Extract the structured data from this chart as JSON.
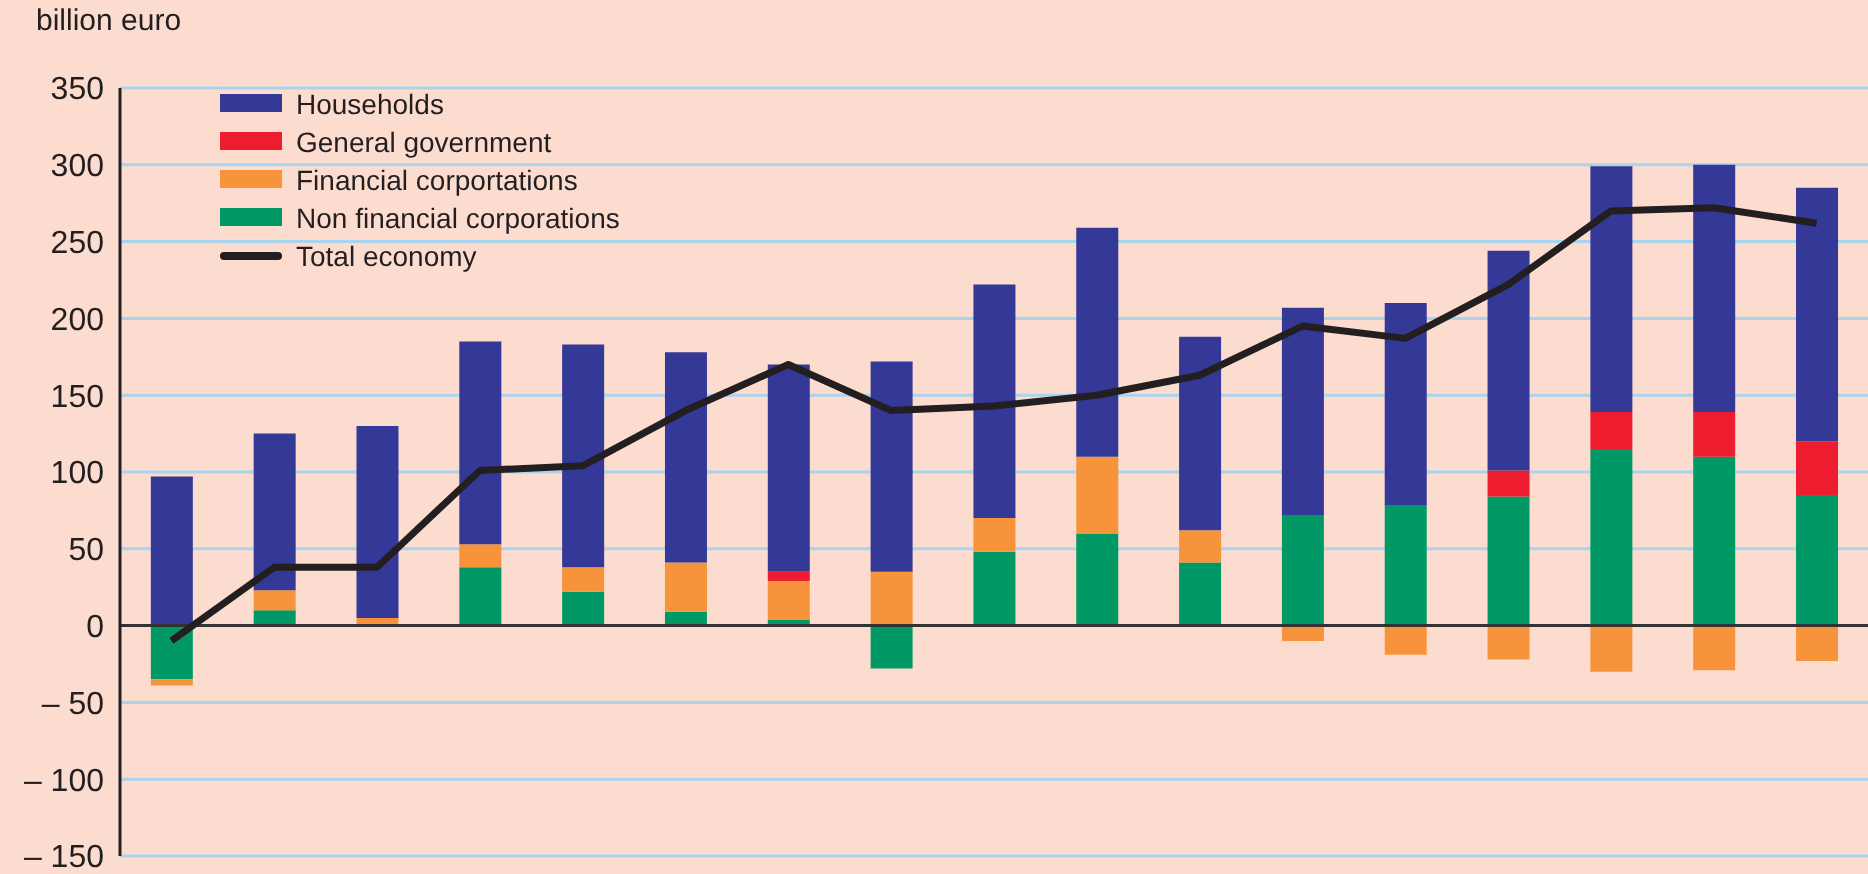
{
  "chart_data": {
    "type": "bar",
    "stacked": true,
    "ylabel": "billion euro",
    "categories": [
      null,
      null,
      null,
      null,
      null,
      null,
      null,
      null,
      null,
      null,
      null,
      null,
      null,
      null,
      null,
      null,
      null
    ],
    "series": [
      {
        "name": "Non financial corporations",
        "color": "#009966",
        "values": [
          -35,
          10,
          0,
          38,
          22,
          9,
          4,
          -28,
          48,
          60,
          41,
          72,
          78,
          84,
          115,
          110,
          85
        ]
      },
      {
        "name": "Financial corportations",
        "color": "#f7943b",
        "values": [
          -4,
          13,
          5,
          15,
          16,
          32,
          25,
          35,
          22,
          50,
          21,
          -10,
          -19,
          -22,
          -30,
          -29,
          -23
        ]
      },
      {
        "name": "General government",
        "color": "#ed1c2e",
        "values": [
          0,
          0,
          0,
          0,
          0,
          0,
          6,
          0,
          0,
          0,
          0,
          0,
          0,
          17,
          24,
          29,
          35
        ]
      },
      {
        "name": "Households",
        "color": "#343896",
        "values": [
          97,
          102,
          125,
          132,
          145,
          137,
          135,
          137,
          152,
          149,
          126,
          135,
          132,
          143,
          160,
          161,
          165
        ]
      },
      {
        "name": "Total economy",
        "type": "line",
        "color": "#231f20",
        "values": [
          -10,
          38,
          38,
          101,
          104,
          140,
          170,
          140,
          143,
          150,
          163,
          195,
          187,
          222,
          270,
          272,
          262
        ]
      }
    ],
    "ylim": [
      -150,
      350
    ],
    "yticks": [
      {
        "value": -150,
        "label": "– 150"
      },
      {
        "value": -100,
        "label": "– 100"
      },
      {
        "value": -50,
        "label": "– 50"
      },
      0,
      50,
      100,
      150,
      200,
      250,
      300,
      350
    ],
    "ref_lines": [
      {
        "axis": "y",
        "value": 0,
        "color": "#333333"
      }
    ],
    "grid": "y",
    "legend": "top left",
    "tick_labels": "y",
    "marker": "none"
  }
}
